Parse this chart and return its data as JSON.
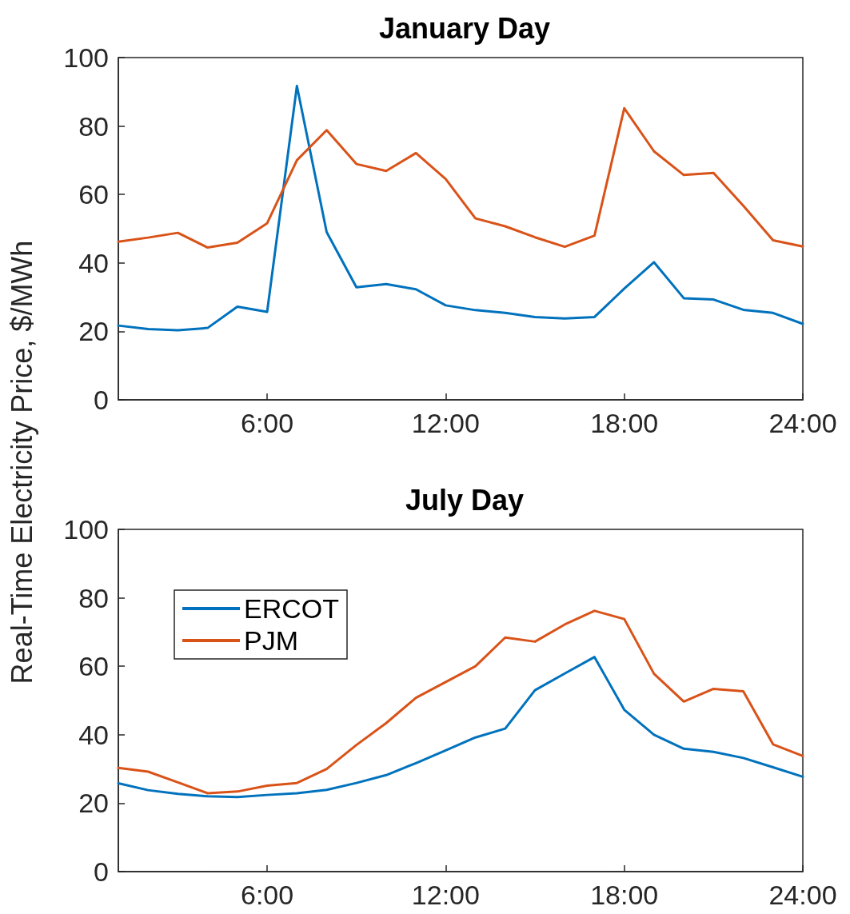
{
  "chart_data": [
    {
      "type": "line",
      "title": "January Day",
      "ylabel": "Real-Time Electricity Price, $/MWh",
      "x": [
        1,
        2,
        3,
        4,
        5,
        6,
        7,
        8,
        9,
        10,
        11,
        12,
        13,
        14,
        15,
        16,
        17,
        18,
        19,
        20,
        21,
        22,
        23,
        24
      ],
      "series": [
        {
          "color": "#0072bd",
          "values": [
            21.7,
            20.7,
            20.3,
            21,
            27.2,
            25.7,
            91.7,
            49,
            32.9,
            33.8,
            32.3,
            27.6,
            26.2,
            25.4,
            24.2,
            23.8,
            24.2,
            32.5,
            40.2,
            29.7,
            29.3,
            26.3,
            25.4,
            22.2
          ]
        },
        {
          "color": "#d95319",
          "values": [
            46.2,
            47.4,
            48.8,
            44.5,
            45.9,
            51.6,
            70,
            78.8,
            68.9,
            66.9,
            72.1,
            64.5,
            53,
            50.7,
            47.5,
            44.7,
            48,
            85.2,
            72.6,
            65.7,
            66.3,
            56.7,
            46.6,
            44.8
          ]
        }
      ],
      "xlim": [
        1,
        24
      ],
      "xticks": [
        {
          "value": 6,
          "label": "6:00"
        },
        {
          "value": 12,
          "label": "12:00"
        },
        {
          "value": 18,
          "label": "18:00"
        },
        {
          "value": 24,
          "label": "24:00"
        }
      ],
      "ylim": [
        0,
        100
      ],
      "yticks": [
        0,
        20,
        40,
        60,
        80,
        100
      ],
      "grid": false,
      "legend": false,
      "marker": "none",
      "line_style": "solid"
    },
    {
      "type": "line",
      "title": "July Day",
      "x": [
        1,
        2,
        3,
        4,
        5,
        6,
        7,
        8,
        9,
        10,
        11,
        12,
        13,
        14,
        15,
        16,
        17,
        18,
        19,
        20,
        21,
        22,
        23,
        24
      ],
      "series": [
        {
          "name": "ERCOT",
          "color": "#0072bd",
          "values": [
            25.8,
            23.8,
            22.7,
            22,
            21.8,
            22.4,
            22.9,
            23.9,
            25.9,
            28.2,
            31.7,
            35.4,
            39.2,
            41.8,
            53,
            57.9,
            62.7,
            47.3,
            40,
            35.9,
            35,
            33.2,
            30.5,
            27.7
          ]
        },
        {
          "name": "PJM",
          "color": "#d95319",
          "values": [
            30.3,
            29.2,
            26.1,
            22.9,
            23.4,
            25.1,
            25.9,
            30,
            37,
            43.4,
            50.8,
            55.4,
            60,
            68.4,
            67.2,
            72.2,
            76.2,
            73.8,
            57.8,
            49.7,
            53.4,
            52.7,
            37.2,
            33.8
          ]
        }
      ],
      "xlim": [
        1,
        24
      ],
      "xticks": [
        {
          "value": 6,
          "label": "6:00"
        },
        {
          "value": 12,
          "label": "12:00"
        },
        {
          "value": 18,
          "label": "18:00"
        },
        {
          "value": 24,
          "label": "24:00"
        }
      ],
      "ylim": [
        0,
        100
      ],
      "yticks": [
        0,
        20,
        40,
        60,
        80,
        100
      ],
      "grid": false,
      "legend": "top left",
      "marker": "none",
      "line_style": "solid"
    }
  ]
}
